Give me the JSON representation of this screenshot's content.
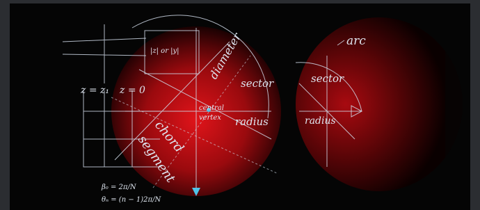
{
  "image": {
    "labels": {
      "arc": "arc",
      "sector_right": "sector",
      "radius_right": "radius",
      "diameter": "diameter",
      "sector_left": "sector",
      "central": "central",
      "vertex": "vertex",
      "radius_left": "radius",
      "chord": "chord",
      "segment": "segment",
      "z_z1": "z = z₁",
      "z_0": "z = 0",
      "abs_z": "|z| or |y|",
      "beta": "β₀ = 2π/N",
      "theta": "θₙ = (n − 1)2π/N"
    }
  }
}
